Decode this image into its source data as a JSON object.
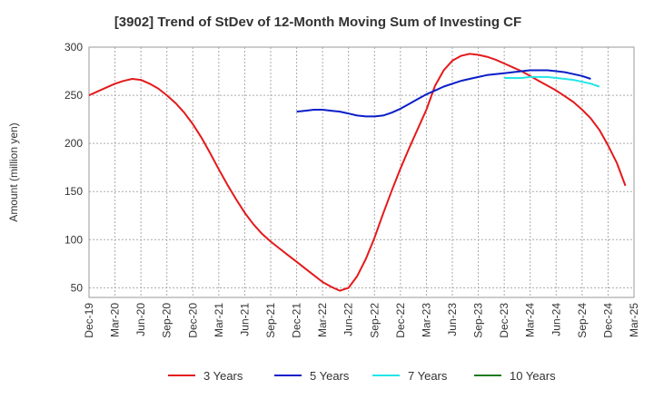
{
  "chart_data": {
    "type": "line",
    "title": "[3902]  Trend of StDev of 12-Month Moving Sum of Investing CF",
    "ylabel": "Amount (million yen)",
    "xlabel": "",
    "ylim": [
      40,
      300
    ],
    "yticks": [
      50,
      100,
      150,
      200,
      250,
      300
    ],
    "xticks": [
      "Dec-19",
      "Mar-20",
      "Jun-20",
      "Sep-20",
      "Dec-20",
      "Mar-21",
      "Jun-21",
      "Sep-21",
      "Dec-21",
      "Mar-22",
      "Jun-22",
      "Sep-22",
      "Dec-22",
      "Mar-23",
      "Jun-23",
      "Sep-23",
      "Dec-23",
      "Mar-24",
      "Jun-24",
      "Sep-24",
      "Dec-24",
      "Mar-25"
    ],
    "grid": true,
    "legend_position": "bottom",
    "colors": {
      "3 Years": "#e41a1c",
      "5 Years": "#0a1ec8",
      "7 Years": "#22e5e8",
      "10 Years": "#1f7a1f"
    },
    "series": [
      {
        "name": "3 Years",
        "x_start": "Dec-19",
        "values": [
          250,
          254,
          258,
          262,
          265,
          267,
          266,
          262,
          257,
          250,
          242,
          232,
          220,
          206,
          190,
          173,
          157,
          142,
          128,
          116,
          106,
          98,
          91,
          84,
          77,
          70,
          63,
          56,
          51,
          47,
          50,
          62,
          80,
          102,
          127,
          151,
          174,
          195,
          215,
          235,
          260,
          276,
          286,
          291,
          293,
          292,
          290,
          287,
          283,
          279,
          275,
          270,
          265,
          260,
          255,
          249,
          243,
          235,
          226,
          214,
          198,
          180,
          156
        ]
      },
      {
        "name": "5 Years",
        "x_start": "Dec-21",
        "values": [
          233,
          234,
          235,
          235,
          234,
          233,
          231,
          229,
          228,
          228,
          229,
          232,
          236,
          241,
          246,
          251,
          255,
          259,
          262,
          265,
          267,
          269,
          271,
          272,
          273,
          274,
          275,
          276,
          276,
          276,
          275,
          274,
          272,
          270,
          267
        ]
      },
      {
        "name": "7 Years",
        "x_start": "Dec-23",
        "values": [
          268,
          268,
          268,
          269,
          269,
          269,
          268,
          267,
          266,
          264,
          262,
          259
        ]
      },
      {
        "name": "10 Years",
        "x_start": "Dec-24",
        "values": []
      }
    ]
  }
}
